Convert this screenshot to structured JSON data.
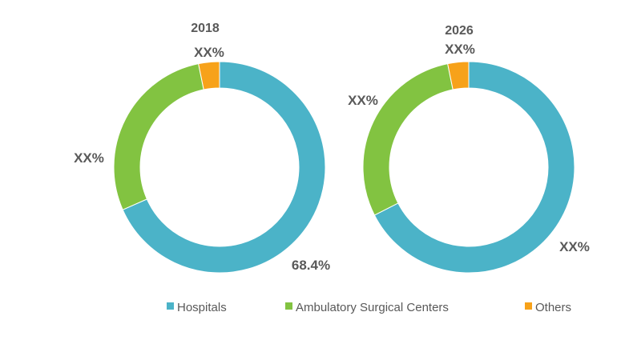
{
  "chart_data": [
    {
      "type": "pie",
      "donut": true,
      "title": "2018",
      "categories": [
        "Hospitals",
        "Ambulatory Surgical Centers",
        "Others"
      ],
      "values": [
        68.4,
        28.4,
        3.2
      ],
      "data_labels": [
        "68.4%",
        "XX%",
        "XX%"
      ],
      "colors": [
        "#4bb3c8",
        "#82c341",
        "#f7a21a"
      ]
    },
    {
      "type": "pie",
      "donut": true,
      "title": "2026",
      "categories": [
        "Hospitals",
        "Ambulatory Surgical Centers",
        "Others"
      ],
      "values": [
        67.5,
        29.3,
        3.2
      ],
      "data_labels": [
        "XX%",
        "XX%",
        "XX%"
      ],
      "colors": [
        "#4bb3c8",
        "#82c341",
        "#f7a21a"
      ]
    }
  ],
  "legend": [
    {
      "label": "Hospitals",
      "color": "#4bb3c8"
    },
    {
      "label": "Ambulatory Surgical Centers",
      "color": "#82c341"
    },
    {
      "label": "Others",
      "color": "#f7a21a"
    }
  ]
}
